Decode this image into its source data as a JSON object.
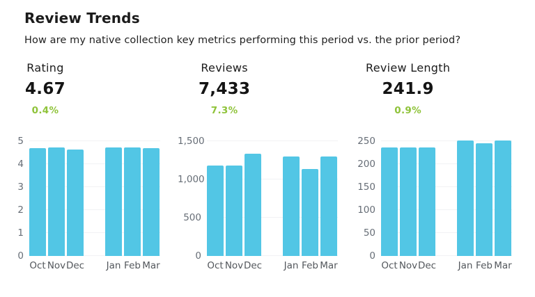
{
  "page": {
    "title": "Review Trends",
    "subtitle": "How are my native collection key metrics performing this period vs. the prior period?"
  },
  "colors": {
    "bar": "#52c6e5",
    "positive_delta": "#8fc33a",
    "heading_text": "#1b1b1b",
    "kpi_value_text": "#141414",
    "y_tick_text": "#666d76",
    "x_label_text": "#53575c",
    "gridline": "#f1f2f4",
    "background": "#ffffff"
  },
  "chart_data": [
    {
      "type": "bar",
      "title": "Rating",
      "kpi": {
        "value": "4.67",
        "delta": "0.4%",
        "delta_direction": "up"
      },
      "categories": [
        "Oct",
        "Nov",
        "Dec",
        "Jan",
        "Feb",
        "Mar"
      ],
      "values": [
        4.7,
        4.72,
        4.65,
        4.73,
        4.72,
        4.7
      ],
      "group_size": 3,
      "xlabel": "",
      "ylabel": "",
      "ylim": [
        0,
        5
      ],
      "yticks": [
        0,
        1,
        2,
        3,
        4,
        5
      ],
      "ytick_labels": [
        "0",
        "1",
        "2",
        "3",
        "4",
        "5"
      ],
      "grid": "horizontal",
      "legend": "none"
    },
    {
      "type": "bar",
      "title": "Reviews",
      "kpi": {
        "value": "7,433",
        "delta": "7.3%",
        "delta_direction": "up"
      },
      "categories": [
        "Oct",
        "Nov",
        "Dec",
        "Jan",
        "Feb",
        "Mar"
      ],
      "values": [
        1180,
        1183,
        1338,
        1297,
        1133,
        1302
      ],
      "group_size": 3,
      "xlabel": "",
      "ylabel": "",
      "ylim": [
        0,
        1500
      ],
      "yticks": [
        0,
        500,
        1000,
        1500
      ],
      "ytick_labels": [
        "0",
        "500",
        "1,000",
        "1,500"
      ],
      "grid": "horizontal",
      "legend": "none"
    },
    {
      "type": "bar",
      "title": "Review Length",
      "kpi": {
        "value": "241.9",
        "delta": "0.9%",
        "delta_direction": "up"
      },
      "categories": [
        "Oct",
        "Nov",
        "Dec",
        "Jan",
        "Feb",
        "Mar"
      ],
      "values": [
        236,
        236,
        237,
        251,
        245,
        251
      ],
      "group_size": 3,
      "xlabel": "",
      "ylabel": "",
      "ylim": [
        0,
        250
      ],
      "yticks": [
        0,
        50,
        100,
        150,
        200,
        250
      ],
      "ytick_labels": [
        "0",
        "50",
        "100",
        "150",
        "200",
        "250"
      ],
      "grid": "horizontal",
      "legend": "none"
    }
  ]
}
